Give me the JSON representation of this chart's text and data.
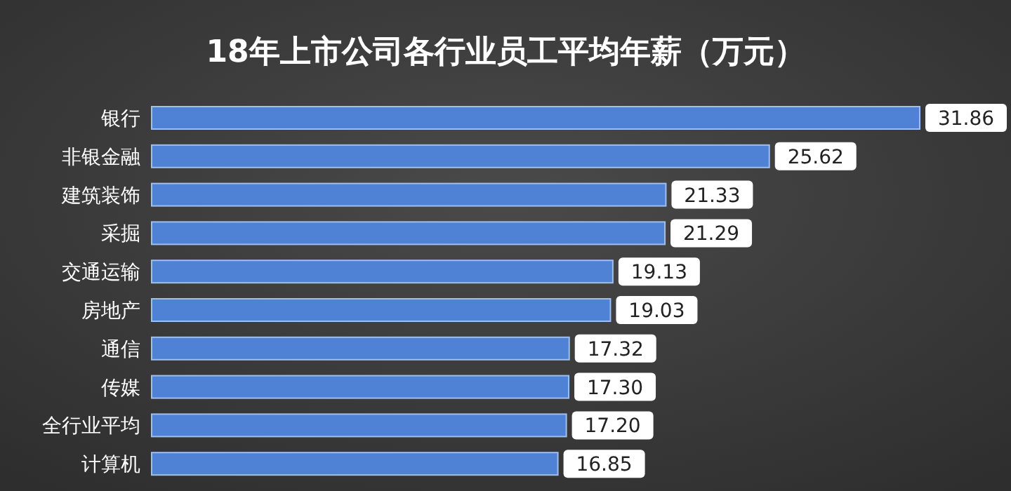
{
  "chart_data": {
    "type": "bar",
    "orientation": "horizontal",
    "title": "18年上市公司各行业员工平均年薪（万元）",
    "categories": [
      "银行",
      "非银金融",
      "建筑装饰",
      "采掘",
      "交通运输",
      "房地产",
      "通信",
      "传媒",
      "全行业平均",
      "计算机"
    ],
    "values": [
      31.86,
      25.62,
      21.33,
      21.29,
      19.13,
      19.03,
      17.32,
      17.3,
      17.2,
      16.85
    ],
    "value_labels": [
      "31.86",
      "25.62",
      "21.33",
      "21.29",
      "19.13",
      "19.03",
      "17.32",
      "17.30",
      "17.20",
      "16.85"
    ],
    "color": "#4f82d4"
  }
}
